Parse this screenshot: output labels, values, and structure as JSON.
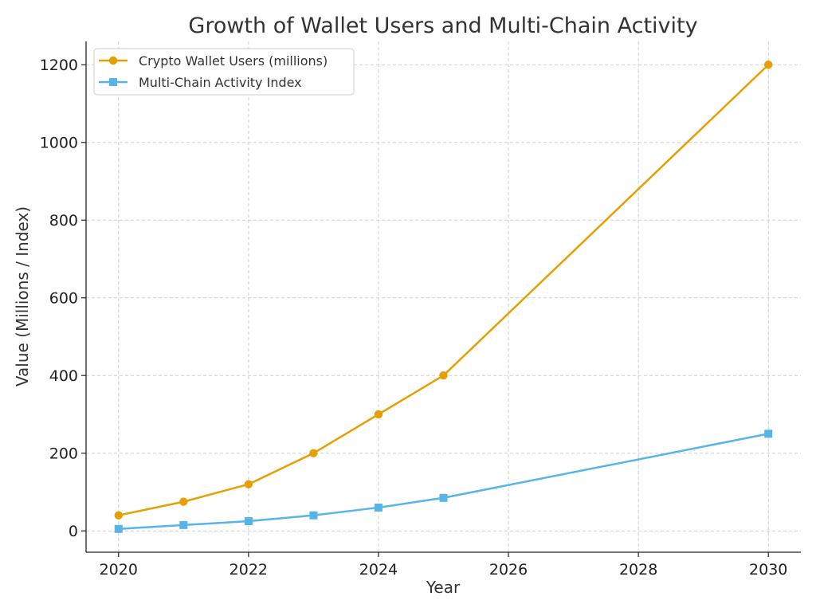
{
  "chart_data": {
    "type": "line",
    "title": "Growth of Wallet Users and Multi-Chain Activity",
    "xlabel": "Year",
    "ylabel": "Value (Millions / Index)",
    "xlim": [
      2019.5,
      2030.5
    ],
    "ylim": [
      -55,
      1260
    ],
    "x_ticks": [
      2020,
      2022,
      2024,
      2026,
      2028,
      2030
    ],
    "y_ticks": [
      0,
      200,
      400,
      600,
      800,
      1000,
      1200
    ],
    "grid": true,
    "legend_position": "top-left",
    "series": [
      {
        "name": "Crypto Wallet Users (millions)",
        "color": "#E69F00",
        "marker": "circle",
        "x": [
          2020,
          2021,
          2022,
          2023,
          2024,
          2025,
          2030
        ],
        "y": [
          40,
          75,
          120,
          200,
          300,
          400,
          1200
        ]
      },
      {
        "name": "Multi-Chain Activity Index",
        "color": "#56B4E9",
        "marker": "square",
        "x": [
          2020,
          2021,
          2022,
          2023,
          2024,
          2025,
          2030
        ],
        "y": [
          5,
          15,
          25,
          40,
          60,
          85,
          250
        ]
      }
    ]
  }
}
